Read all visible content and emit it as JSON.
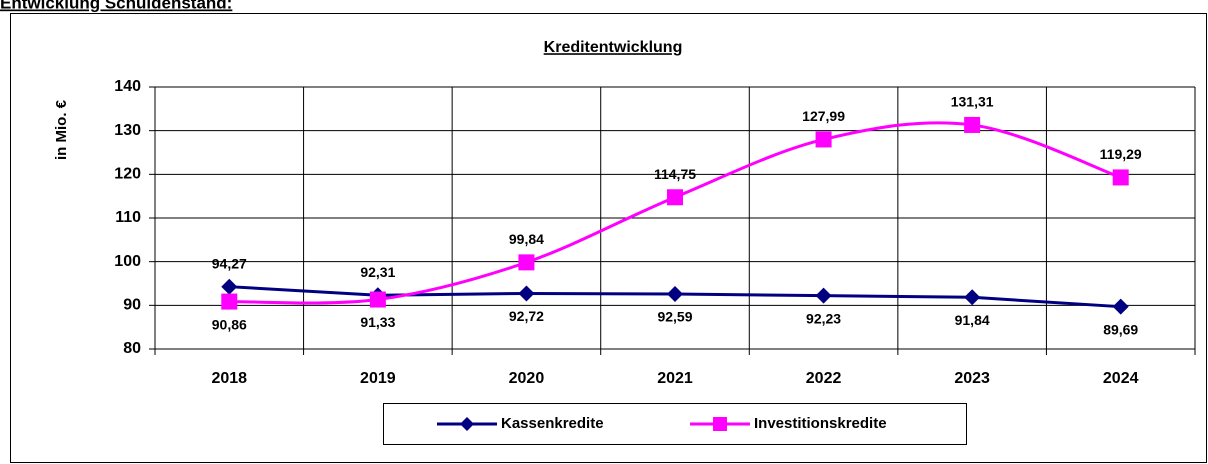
{
  "page_title": "Entwicklung Schuldenstand:",
  "chart_data": {
    "type": "line",
    "title": "Kreditentwicklung",
    "y_label": "in Mio. €",
    "categories": [
      "2018",
      "2019",
      "2020",
      "2021",
      "2022",
      "2023",
      "2024"
    ],
    "series": [
      {
        "name": "Kassenkredite",
        "color": "#000080",
        "marker": "diamond",
        "smooth": false,
        "values": [
          94.27,
          92.31,
          92.72,
          92.59,
          92.23,
          91.84,
          89.69
        ],
        "value_labels": [
          "94,27",
          "92,31",
          "92,72",
          "92,59",
          "92,23",
          "91,84",
          "89,69"
        ]
      },
      {
        "name": "Investitionskredite",
        "color": "#ff00ff",
        "marker": "square",
        "smooth": true,
        "values": [
          90.86,
          91.33,
          99.84,
          114.75,
          127.99,
          131.31,
          119.29
        ],
        "value_labels": [
          "90,86",
          "91,33",
          "99,84",
          "114,75",
          "127,99",
          "131,31",
          "119,29"
        ]
      }
    ],
    "ylim": [
      80,
      140
    ],
    "yticks": [
      80,
      90,
      100,
      110,
      120,
      130,
      140
    ],
    "grid": true,
    "legend": "bottom"
  }
}
